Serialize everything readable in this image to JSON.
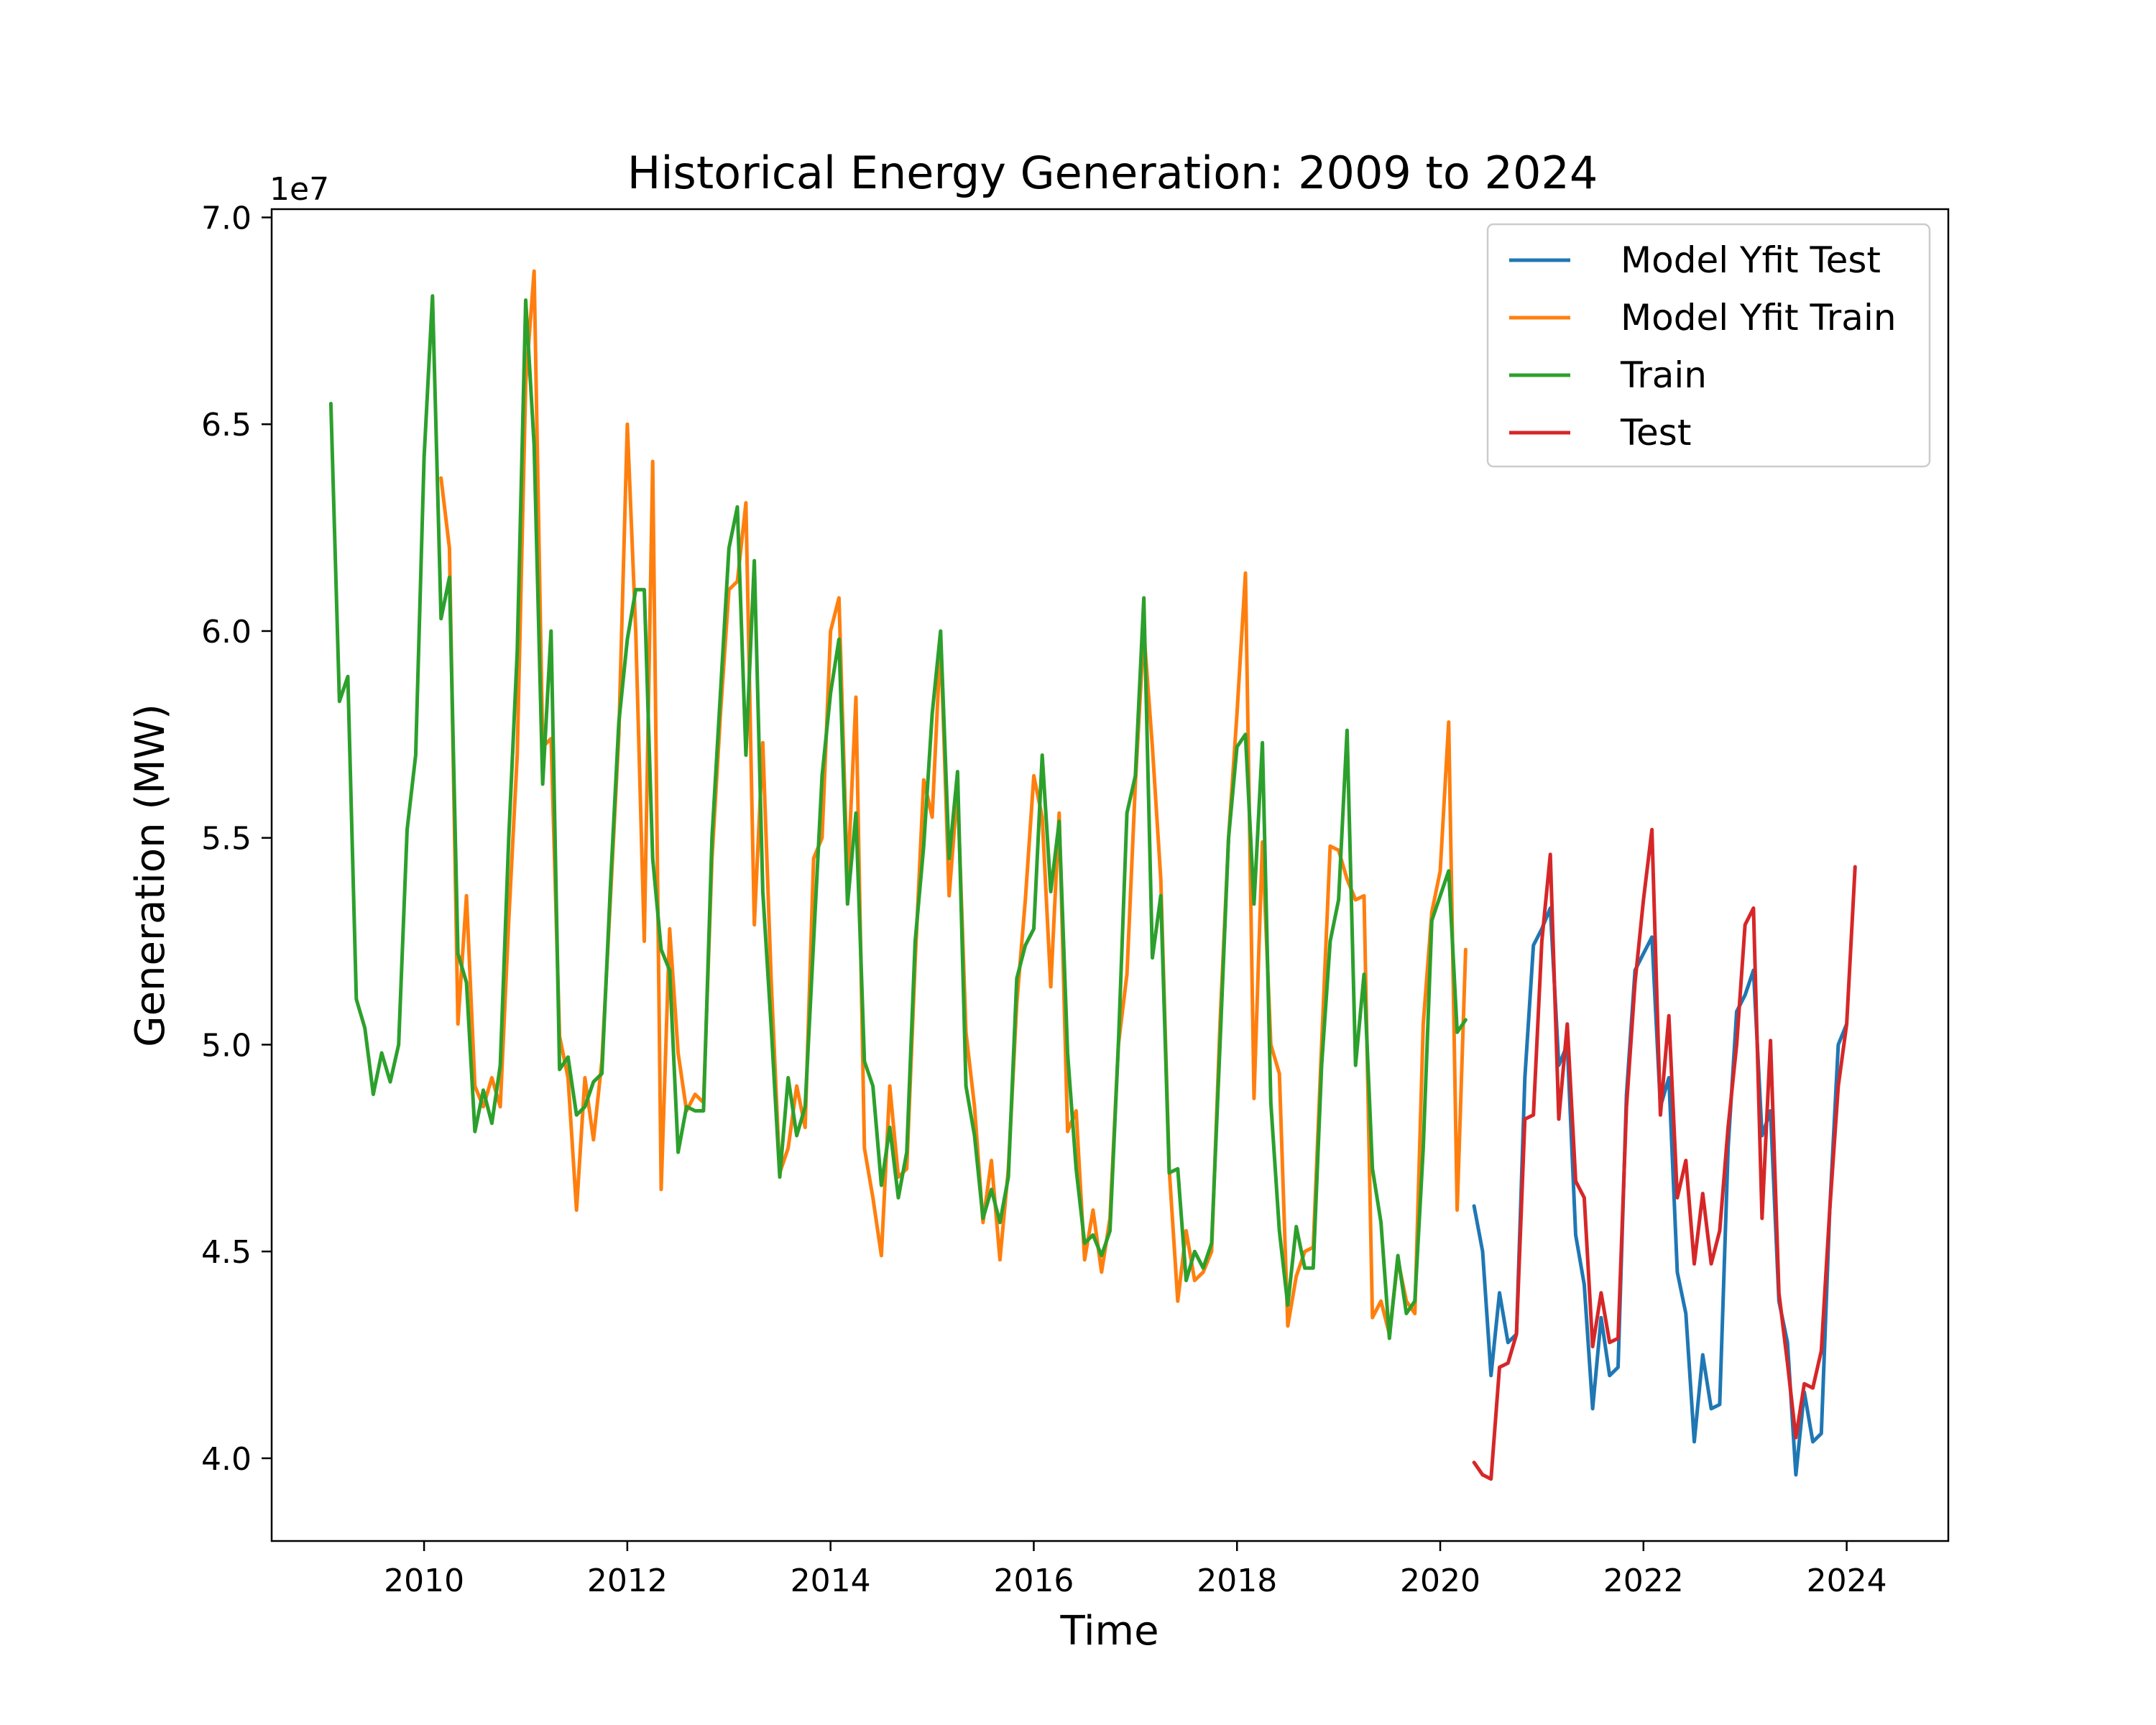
{
  "chart_data": {
    "type": "line",
    "title": "Historical Energy Generation: 2009 to 2024",
    "xlabel": "Time",
    "ylabel": "Generation (MW)",
    "y_offset_label": "1e7",
    "xlim": [
      2008.5,
      2025.0
    ],
    "ylim": [
      3.8,
      7.02
    ],
    "x_ticks": [
      2010,
      2012,
      2014,
      2016,
      2018,
      2020,
      2022,
      2024
    ],
    "x_tick_labels": [
      "2010",
      "2012",
      "2014",
      "2016",
      "2018",
      "2020",
      "2022",
      "2024"
    ],
    "y_ticks": [
      4.0,
      4.5,
      5.0,
      5.5,
      6.0,
      6.5,
      7.0
    ],
    "y_tick_labels": [
      "4.0",
      "4.5",
      "5.0",
      "5.5",
      "6.0",
      "6.5",
      "7.0"
    ],
    "legend_position": "top-right",
    "grid": false,
    "series": [
      {
        "name": "Model Yfit Test",
        "color": "#1f77b4",
        "x": [
          2020.333,
          2020.417,
          2020.5,
          2020.583,
          2020.667,
          2020.75,
          2020.833,
          2020.917,
          2021.0,
          2021.083,
          2021.167,
          2021.25,
          2021.333,
          2021.417,
          2021.5,
          2021.583,
          2021.667,
          2021.75,
          2021.833,
          2021.917,
          2022.0,
          2022.083,
          2022.167,
          2022.25,
          2022.333,
          2022.417,
          2022.5,
          2022.583,
          2022.667,
          2022.75,
          2022.833,
          2022.917,
          2023.0,
          2023.083,
          2023.167,
          2023.25,
          2023.333,
          2023.417,
          2023.5,
          2023.583,
          2023.667,
          2023.75,
          2023.833,
          2023.917,
          2024.0
        ],
        "y": [
          4.61,
          4.5,
          4.2,
          4.4,
          4.28,
          4.3,
          4.92,
          5.24,
          5.28,
          5.33,
          4.95,
          5.0,
          4.54,
          4.42,
          4.12,
          4.34,
          4.2,
          4.22,
          4.88,
          5.18,
          5.22,
          5.26,
          4.85,
          4.92,
          4.45,
          4.35,
          4.04,
          4.25,
          4.12,
          4.13,
          4.75,
          5.08,
          5.12,
          5.18,
          4.78,
          4.84,
          4.38,
          4.28,
          3.96,
          4.16,
          4.04,
          4.06,
          4.6,
          5.0,
          5.05
        ]
      },
      {
        "name": "Model Yfit Train",
        "color": "#ff7f0e",
        "x": [
          2010.167,
          2010.25,
          2010.333,
          2010.417,
          2010.5,
          2010.583,
          2010.667,
          2010.75,
          2010.833,
          2010.917,
          2011.0,
          2011.083,
          2011.167,
          2011.25,
          2011.333,
          2011.417,
          2011.5,
          2011.583,
          2011.667,
          2011.75,
          2011.833,
          2011.917,
          2012.0,
          2012.083,
          2012.167,
          2012.25,
          2012.333,
          2012.417,
          2012.5,
          2012.583,
          2012.667,
          2012.75,
          2012.833,
          2012.917,
          2013.0,
          2013.083,
          2013.167,
          2013.25,
          2013.333,
          2013.417,
          2013.5,
          2013.583,
          2013.667,
          2013.75,
          2013.833,
          2013.917,
          2014.0,
          2014.083,
          2014.167,
          2014.25,
          2014.333,
          2014.417,
          2014.5,
          2014.583,
          2014.667,
          2014.75,
          2014.833,
          2014.917,
          2015.0,
          2015.083,
          2015.167,
          2015.25,
          2015.333,
          2015.417,
          2015.5,
          2015.583,
          2015.667,
          2015.75,
          2015.833,
          2015.917,
          2016.0,
          2016.083,
          2016.167,
          2016.25,
          2016.333,
          2016.417,
          2016.5,
          2016.583,
          2016.667,
          2016.75,
          2016.833,
          2016.917,
          2017.0,
          2017.083,
          2017.167,
          2017.25,
          2017.333,
          2017.417,
          2017.5,
          2017.583,
          2017.667,
          2017.75,
          2017.833,
          2017.917,
          2018.0,
          2018.083,
          2018.167,
          2018.25,
          2018.333,
          2018.417,
          2018.5,
          2018.583,
          2018.667,
          2018.75,
          2018.833,
          2018.917,
          2019.0,
          2019.083,
          2019.167,
          2019.25,
          2019.333,
          2019.417,
          2019.5,
          2019.583,
          2019.667,
          2019.75,
          2019.833,
          2019.917,
          2020.0,
          2020.083,
          2020.167,
          2020.25
        ],
        "y": [
          6.37,
          6.2,
          5.05,
          5.36,
          4.9,
          4.85,
          4.92,
          4.85,
          5.3,
          5.7,
          6.6,
          6.87,
          5.72,
          5.74,
          5.02,
          4.92,
          4.6,
          4.92,
          4.77,
          4.96,
          5.35,
          5.75,
          6.5,
          6.0,
          5.25,
          6.41,
          4.65,
          5.28,
          4.98,
          4.84,
          4.88,
          4.86,
          5.45,
          5.8,
          6.1,
          6.12,
          6.31,
          5.29,
          5.73,
          5.15,
          4.69,
          4.75,
          4.9,
          4.8,
          5.45,
          5.5,
          6.0,
          6.08,
          5.39,
          5.84,
          4.75,
          4.63,
          4.49,
          4.9,
          4.68,
          4.7,
          5.2,
          5.64,
          5.55,
          5.98,
          5.36,
          5.62,
          5.03,
          4.85,
          4.57,
          4.72,
          4.48,
          4.7,
          5.1,
          5.35,
          5.65,
          5.55,
          5.14,
          5.56,
          4.79,
          4.84,
          4.48,
          4.6,
          4.45,
          4.58,
          5.0,
          5.17,
          5.63,
          6.0,
          5.72,
          5.4,
          4.7,
          4.38,
          4.55,
          4.43,
          4.45,
          4.5,
          5.05,
          5.5,
          5.8,
          6.14,
          4.87,
          5.49,
          5.0,
          4.93,
          4.32,
          4.44,
          4.5,
          4.51,
          5.0,
          5.48,
          5.47,
          5.4,
          5.35,
          5.36,
          4.34,
          4.38,
          4.3,
          4.48,
          4.38,
          4.35,
          5.05,
          5.32,
          5.42,
          5.78,
          4.6,
          5.23
        ]
      },
      {
        "name": "Train",
        "color": "#2ca02c",
        "x": [
          2009.083,
          2009.167,
          2009.25,
          2009.333,
          2009.417,
          2009.5,
          2009.583,
          2009.667,
          2009.75,
          2009.833,
          2009.917,
          2010.0,
          2010.083,
          2010.167,
          2010.25,
          2010.333,
          2010.417,
          2010.5,
          2010.583,
          2010.667,
          2010.75,
          2010.833,
          2010.917,
          2011.0,
          2011.083,
          2011.167,
          2011.25,
          2011.333,
          2011.417,
          2011.5,
          2011.583,
          2011.667,
          2011.75,
          2011.833,
          2011.917,
          2012.0,
          2012.083,
          2012.167,
          2012.25,
          2012.333,
          2012.417,
          2012.5,
          2012.583,
          2012.667,
          2012.75,
          2012.833,
          2012.917,
          2013.0,
          2013.083,
          2013.167,
          2013.25,
          2013.333,
          2013.417,
          2013.5,
          2013.583,
          2013.667,
          2013.75,
          2013.833,
          2013.917,
          2014.0,
          2014.083,
          2014.167,
          2014.25,
          2014.333,
          2014.417,
          2014.5,
          2014.583,
          2014.667,
          2014.75,
          2014.833,
          2014.917,
          2015.0,
          2015.083,
          2015.167,
          2015.25,
          2015.333,
          2015.417,
          2015.5,
          2015.583,
          2015.667,
          2015.75,
          2015.833,
          2015.917,
          2016.0,
          2016.083,
          2016.167,
          2016.25,
          2016.333,
          2016.417,
          2016.5,
          2016.583,
          2016.667,
          2016.75,
          2016.833,
          2016.917,
          2017.0,
          2017.083,
          2017.167,
          2017.25,
          2017.333,
          2017.417,
          2017.5,
          2017.583,
          2017.667,
          2017.75,
          2017.833,
          2017.917,
          2018.0,
          2018.083,
          2018.167,
          2018.25,
          2018.333,
          2018.417,
          2018.5,
          2018.583,
          2018.667,
          2018.75,
          2018.833,
          2018.917,
          2019.0,
          2019.083,
          2019.167,
          2019.25,
          2019.333,
          2019.417,
          2019.5,
          2019.583,
          2019.667,
          2019.75,
          2019.833,
          2019.917,
          2020.0,
          2020.083,
          2020.167,
          2020.25
        ],
        "y": [
          6.55,
          5.83,
          5.89,
          5.11,
          5.04,
          4.88,
          4.98,
          4.91,
          5.0,
          5.52,
          5.7,
          6.42,
          6.81,
          6.03,
          6.13,
          5.22,
          5.15,
          4.79,
          4.89,
          4.81,
          4.95,
          5.5,
          5.95,
          6.8,
          6.45,
          5.63,
          6.0,
          4.94,
          4.97,
          4.83,
          4.85,
          4.91,
          4.93,
          5.38,
          5.78,
          5.98,
          6.1,
          6.1,
          5.45,
          5.23,
          5.18,
          4.74,
          4.85,
          4.84,
          4.84,
          5.5,
          5.85,
          6.2,
          6.3,
          5.7,
          6.17,
          5.37,
          5.04,
          4.68,
          4.92,
          4.78,
          4.85,
          5.25,
          5.65,
          5.85,
          5.98,
          5.34,
          5.56,
          4.96,
          4.9,
          4.66,
          4.8,
          4.63,
          4.74,
          5.25,
          5.48,
          5.8,
          6.0,
          5.45,
          5.66,
          4.9,
          4.78,
          4.58,
          4.65,
          4.57,
          4.68,
          5.16,
          5.24,
          5.28,
          5.7,
          5.37,
          5.54,
          4.98,
          4.7,
          4.52,
          4.54,
          4.49,
          4.55,
          5.0,
          5.56,
          5.65,
          6.08,
          5.21,
          5.36,
          4.69,
          4.7,
          4.43,
          4.5,
          4.46,
          4.52,
          5.0,
          5.5,
          5.72,
          5.75,
          5.34,
          5.73,
          4.86,
          4.55,
          4.37,
          4.56,
          4.46,
          4.46,
          4.95,
          5.25,
          5.35,
          5.76,
          4.95,
          5.17,
          4.7,
          4.57,
          4.29,
          4.49,
          4.35,
          4.38,
          4.75,
          5.3,
          5.36,
          5.42,
          5.03,
          5.06
        ]
      },
      {
        "name": "Test",
        "color": "#d62728",
        "x": [
          2020.333,
          2020.417,
          2020.5,
          2020.583,
          2020.667,
          2020.75,
          2020.833,
          2020.917,
          2021.0,
          2021.083,
          2021.167,
          2021.25,
          2021.333,
          2021.417,
          2021.5,
          2021.583,
          2021.667,
          2021.75,
          2021.833,
          2021.917,
          2022.0,
          2022.083,
          2022.167,
          2022.25,
          2022.333,
          2022.417,
          2022.5,
          2022.583,
          2022.667,
          2022.75,
          2022.833,
          2022.917,
          2023.0,
          2023.083,
          2023.167,
          2023.25,
          2023.333,
          2023.417,
          2023.5,
          2023.583,
          2023.667,
          2023.75,
          2023.833,
          2023.917,
          2024.0,
          2024.083
        ],
        "y": [
          3.99,
          3.96,
          3.95,
          4.22,
          4.23,
          4.3,
          4.82,
          4.83,
          5.25,
          5.46,
          4.82,
          5.05,
          4.67,
          4.63,
          4.27,
          4.4,
          4.28,
          4.29,
          4.85,
          5.15,
          5.35,
          5.52,
          4.83,
          5.07,
          4.63,
          4.72,
          4.47,
          4.64,
          4.47,
          4.55,
          4.8,
          5.0,
          5.29,
          5.33,
          4.58,
          5.01,
          4.4,
          4.23,
          4.05,
          4.18,
          4.17,
          4.26,
          4.6,
          4.9,
          5.05,
          5.43
        ]
      }
    ]
  }
}
